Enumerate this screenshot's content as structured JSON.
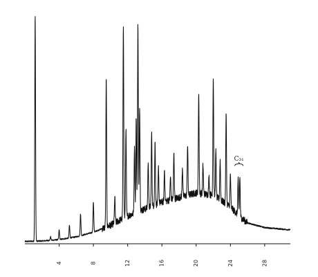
{
  "chart_data": {
    "type": "line",
    "xlim": [
      0,
      31
    ],
    "ylim": [
      0,
      1
    ],
    "grid": false,
    "legend": "none",
    "line_color": "#111111",
    "x_ticks": [
      4,
      8,
      12,
      16,
      20,
      24,
      28
    ],
    "x_tick_labels": [
      "4",
      "8",
      "12",
      "16",
      "20",
      "24",
      "28"
    ],
    "annotations": [
      {
        "text": "C₃₁",
        "x": 25.0,
        "y": 0.36
      }
    ],
    "baseline": [
      [
        0.0,
        0.01
      ],
      [
        2.0,
        0.012
      ],
      [
        4.0,
        0.018
      ],
      [
        6.0,
        0.03
      ],
      [
        8.0,
        0.05
      ],
      [
        10.0,
        0.08
      ],
      [
        12.0,
        0.12
      ],
      [
        14.0,
        0.15
      ],
      [
        16.0,
        0.18
      ],
      [
        18.0,
        0.2
      ],
      [
        20.0,
        0.22
      ],
      [
        22.0,
        0.21
      ],
      [
        24.0,
        0.16
      ],
      [
        25.0,
        0.12
      ],
      [
        26.0,
        0.09
      ],
      [
        28.0,
        0.07
      ],
      [
        31.0,
        0.06
      ]
    ],
    "peaks": [
      [
        1.2,
        0.99
      ],
      [
        3.0,
        0.03
      ],
      [
        4.0,
        0.06
      ],
      [
        5.2,
        0.08
      ],
      [
        6.5,
        0.13
      ],
      [
        8.0,
        0.18
      ],
      [
        9.5,
        0.71
      ],
      [
        10.5,
        0.2
      ],
      [
        11.5,
        0.95
      ],
      [
        11.8,
        0.5
      ],
      [
        12.8,
        0.43
      ],
      [
        13.0,
        0.55
      ],
      [
        13.2,
        0.95
      ],
      [
        13.4,
        0.6
      ],
      [
        14.4,
        0.36
      ],
      [
        14.8,
        0.48
      ],
      [
        15.2,
        0.44
      ],
      [
        15.6,
        0.33
      ],
      [
        16.3,
        0.32
      ],
      [
        17.0,
        0.29
      ],
      [
        17.4,
        0.39
      ],
      [
        18.4,
        0.33
      ],
      [
        19.0,
        0.43
      ],
      [
        20.3,
        0.65
      ],
      [
        20.8,
        0.34
      ],
      [
        21.5,
        0.29
      ],
      [
        22.0,
        0.72
      ],
      [
        22.3,
        0.4
      ],
      [
        22.8,
        0.36
      ],
      [
        23.5,
        0.56
      ],
      [
        24.0,
        0.3
      ],
      [
        24.9,
        0.28
      ],
      [
        25.1,
        0.29
      ]
    ]
  }
}
